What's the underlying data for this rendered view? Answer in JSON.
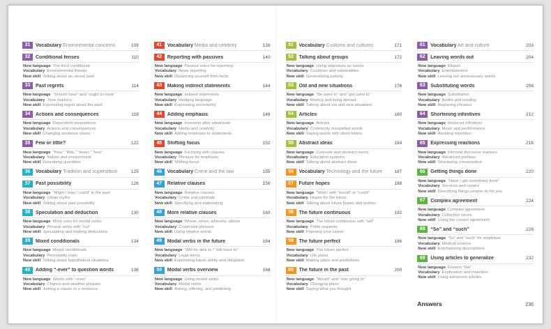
{
  "answers": {
    "label": "Answers",
    "page": "236"
  },
  "item_labels": {
    "new_language": "New language",
    "vocabulary": "Vocabulary",
    "new_skill": "New skill"
  },
  "section_colors": {
    "purple": "#8e5ba6",
    "teal": "#29b0c7",
    "red": "#e3492c",
    "blue": "#379fd9",
    "lime": "#9fc13c",
    "orange": "#f6941e",
    "green": "#5eb248"
  },
  "columns": [
    {
      "units": [
        {
          "number": "31",
          "color": "#8e5ba6",
          "vocab": "Environmental concerns",
          "page": "109"
        },
        {
          "number": "32",
          "color": "#8e5ba6",
          "title": "Conditional tenses",
          "page": "110",
          "new_language": "The third conditional",
          "vocabulary": "Environmental threats",
          "new_skill": "Talking about an unreal past"
        },
        {
          "number": "33",
          "color": "#8e5ba6",
          "title": "Past regrets",
          "page": "114",
          "new_language": "“Should have” and “ought to have”",
          "vocabulary": "Time markers",
          "new_skill": "Expressing regret about the past"
        },
        {
          "number": "34",
          "color": "#8e5ba6",
          "title": "Actions and consequences",
          "page": "118",
          "new_language": "Dependent prepositions",
          "vocabulary": "Actions and consequences",
          "new_skill": "Changing sentence stress"
        },
        {
          "number": "35",
          "color": "#8e5ba6",
          "title": "Few or little?",
          "page": "122",
          "new_language": "“Few,” “little,” “fewer,” “less”",
          "vocabulary": "Nature and environment",
          "new_skill": "Describing quantities"
        },
        {
          "number": "36",
          "color": "#29b0c7",
          "vocab": "Tradition and superstition",
          "page": "125"
        },
        {
          "number": "37",
          "color": "#29b0c7",
          "title": "Past possibility",
          "page": "126",
          "new_language": "“Might / may / could” in the past",
          "vocabulary": "Urban myths",
          "new_skill": "Talking about past possibility"
        },
        {
          "number": "38",
          "color": "#29b0c7",
          "title": "Speculation and deduction",
          "page": "130",
          "new_language": "More uses for modal verbs",
          "vocabulary": "Phrasal verbs with “out”",
          "new_skill": "Speculating and making deductions"
        },
        {
          "number": "39",
          "color": "#29b0c7",
          "title": "Mixed conditionals",
          "page": "134",
          "new_language": "Mixed conditionals",
          "vocabulary": "Personality traits",
          "new_skill": "Talking about hypothetical situations"
        },
        {
          "number": "40",
          "color": "#29b0c7",
          "title": "Adding “-ever” to question words",
          "page": "136",
          "new_language": "Words with “-ever”",
          "vocabulary": "Chance and weather phrases",
          "new_skill": "Joining a clause to a sentence"
        }
      ]
    },
    {
      "units": [
        {
          "number": "41",
          "color": "#e3492c",
          "vocab": "Media and celebrity",
          "page": "139"
        },
        {
          "number": "42",
          "color": "#e3492c",
          "title": "Reporting with passives",
          "page": "140",
          "new_language": "Passive voice for reporting",
          "vocabulary": "News reporting",
          "new_skill": "Distancing yourself from facts"
        },
        {
          "number": "43",
          "color": "#e3492c",
          "title": "Making indirect statements",
          "page": "144",
          "new_language": "Indirect statements",
          "vocabulary": "Hedging language",
          "new_skill": "Expressing uncertainty"
        },
        {
          "number": "44",
          "color": "#e3492c",
          "title": "Adding emphasis",
          "page": "148",
          "new_language": "Inversion after adverbials",
          "vocabulary": "Media and celebrity",
          "new_skill": "Adding emphasis to statements"
        },
        {
          "number": "45",
          "color": "#e3492c",
          "title": "Shifting focus",
          "page": "152",
          "new_language": "Focusing with clauses",
          "vocabulary": "Phrases for emphasis",
          "new_skill": "Shifting focus"
        },
        {
          "number": "46",
          "color": "#379fd9",
          "vocab": "Crime and the law",
          "page": "155"
        },
        {
          "number": "47",
          "color": "#379fd9",
          "title": "Relative clauses",
          "page": "156",
          "new_language": "Relative clauses",
          "vocabulary": "Crime and criminals",
          "new_skill": "Specifying and elaborating"
        },
        {
          "number": "48",
          "color": "#379fd9",
          "title": "More relative clauses",
          "page": "160",
          "new_language": "Where, when, whereby, whose",
          "vocabulary": "Courtroom phrases",
          "new_skill": "Using relative words"
        },
        {
          "number": "49",
          "color": "#379fd9",
          "title": "Modal verbs in the future",
          "page": "164",
          "new_language": "“Will be able to,” “will have to”",
          "vocabulary": "Legal terms",
          "new_skill": "Expressing future ability and obligation"
        },
        {
          "number": "50",
          "color": "#379fd9",
          "title": "Modal verbs overview",
          "page": "168",
          "new_language": "Using modal verbs",
          "vocabulary": "Modal verbs",
          "new_skill": "Asking, offering, and predicting"
        }
      ]
    },
    {
      "units": [
        {
          "number": "51",
          "color": "#9fc13c",
          "vocab": "Customs and cultures",
          "page": "171"
        },
        {
          "number": "52",
          "color": "#9fc13c",
          "title": "Talking about groups",
          "page": "172",
          "new_language": "Using adjectives as nouns",
          "vocabulary": "Countries and nationalities",
          "new_skill": "Generalizing politely"
        },
        {
          "number": "53",
          "color": "#9fc13c",
          "title": "Old and new situations",
          "page": "176",
          "new_language": "“Be used to” and “get used to”",
          "vocabulary": "Moving and living abroad",
          "new_skill": "Talking about old and new situations"
        },
        {
          "number": "54",
          "color": "#9fc13c",
          "title": "Articles",
          "page": "180",
          "new_language": "Articles",
          "vocabulary": "Commonly misspelled words",
          "new_skill": "Saying words with silent letters"
        },
        {
          "number": "55",
          "color": "#9fc13c",
          "title": "Abstract ideas",
          "page": "184",
          "new_language": "Concrete and abstract nouns",
          "vocabulary": "Education systems",
          "new_skill": "Talking about abstract ideas"
        },
        {
          "number": "56",
          "color": "#f6941e",
          "vocab": "Technology and the future",
          "page": "187"
        },
        {
          "number": "57",
          "color": "#f6941e",
          "title": "Future hopes",
          "page": "188",
          "new_language": "“Wish” with “would” or “could”",
          "vocabulary": "Hopes for the future",
          "new_skill": "Talking about future hopes and wishes"
        },
        {
          "number": "58",
          "color": "#f6941e",
          "title": "The future continuous",
          "page": "192",
          "new_language": "The future continuous with “will”",
          "vocabulary": "Polite requests",
          "new_skill": "Planning your career"
        },
        {
          "number": "59",
          "color": "#f6941e",
          "title": "The future perfect",
          "page": "196",
          "new_language": "The future perfect",
          "vocabulary": "Life plans",
          "new_skill": "Making plans and predictions"
        },
        {
          "number": "60",
          "color": "#f6941e",
          "title": "The future in the past",
          "page": "200",
          "new_language": "“Would” and “was going to”",
          "vocabulary": "Changing plans",
          "new_skill": "Saying what you thought"
        }
      ]
    },
    {
      "units": [
        {
          "number": "61",
          "color": "#8e5ba6",
          "vocab": "Art and culture",
          "page": "203"
        },
        {
          "number": "62",
          "color": "#8e5ba6",
          "title": "Leaving words out",
          "page": "204",
          "new_language": "Ellipsis",
          "vocabulary": "Entertainment",
          "new_skill": "Leaving out unnecessary words"
        },
        {
          "number": "63",
          "color": "#8e5ba6",
          "title": "Substituting words",
          "page": "208",
          "new_language": "Substitution",
          "vocabulary": "Books and reading",
          "new_skill": "Replacing phrases"
        },
        {
          "number": "64",
          "color": "#8e5ba6",
          "title": "Shortening infinitives",
          "page": "212",
          "new_language": "Reduced infinitives",
          "vocabulary": "Music and performance",
          "new_skill": "Avoiding repetition"
        },
        {
          "number": "65",
          "color": "#8e5ba6",
          "title": "Expressing reactions",
          "page": "216",
          "new_language": "Informal discourse markers",
          "vocabulary": "Advanced prefixes",
          "new_skill": "Structuring conversation"
        },
        {
          "number": "66",
          "color": "#5eb248",
          "title": "Getting things done",
          "page": "220",
          "new_language": "“Have / get something done”",
          "vocabulary": "Services and repairs",
          "new_skill": "Describing things people do for you"
        },
        {
          "number": "67",
          "color": "#5eb248",
          "title": "Complex agreement",
          "page": "224",
          "new_language": "Complex agreement",
          "vocabulary": "Collective nouns",
          "new_skill": "Using the correct agreement"
        },
        {
          "number": "68",
          "color": "#5eb248",
          "title": "“So” and “such”",
          "page": "228",
          "new_language": "“So” and “such” for emphasis",
          "vocabulary": "Medical science",
          "new_skill": "Emphasizing descriptions"
        },
        {
          "number": "69",
          "color": "#5eb248",
          "title": "Using articles to generalize",
          "page": "232",
          "new_language": "Generic “the”",
          "vocabulary": "Exploration and invention",
          "new_skill": "Using advanced articles"
        }
      ]
    }
  ]
}
